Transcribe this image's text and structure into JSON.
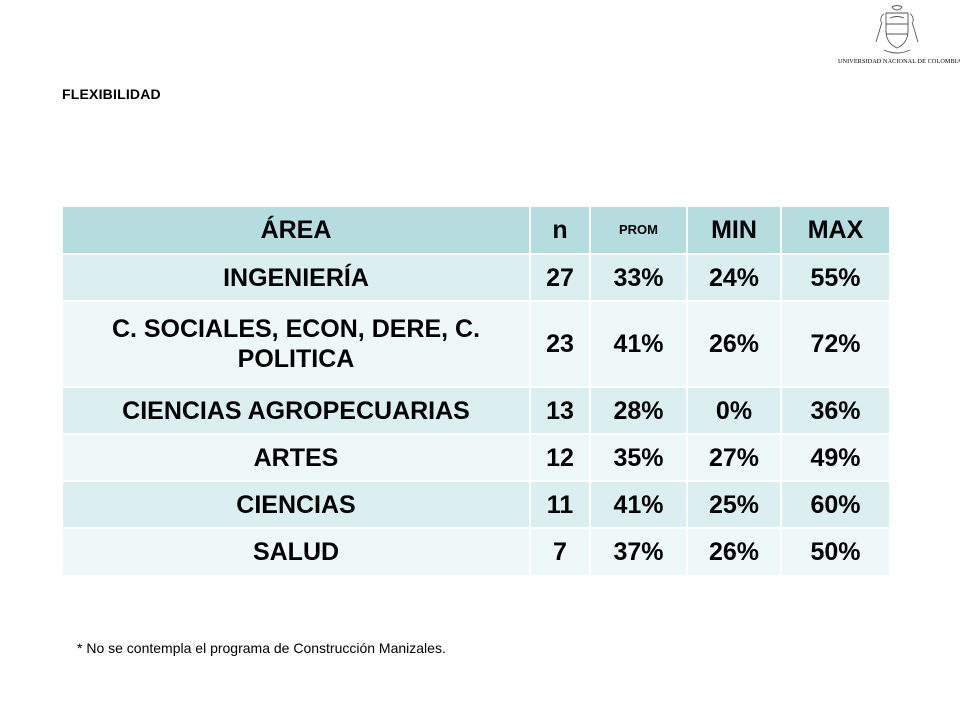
{
  "page": {
    "title": "FLEXIBILIDAD",
    "logo_text": "UNIVERSIDAD NACIONAL DE COLOMBIA",
    "footnote": "* No se contempla el programa de Construcción Manizales."
  },
  "table": {
    "headers": [
      "ÁREA",
      "n",
      "PROM",
      "MIN",
      "MAX"
    ],
    "rows": [
      {
        "area": "INGENIERÍA",
        "n": "27",
        "prom": "33%",
        "min": "24%",
        "max": "55%"
      },
      {
        "area": "C. SOCIALES, ECON, DERE, C. POLITICA",
        "n": "23",
        "prom": "41%",
        "min": "26%",
        "max": "72%"
      },
      {
        "area": "CIENCIAS AGROPECUARIAS",
        "n": "13",
        "prom": "28%",
        "min": "0%",
        "max": "36%"
      },
      {
        "area": "ARTES",
        "n": "12",
        "prom": "35%",
        "min": "27%",
        "max": "49%"
      },
      {
        "area": "CIENCIAS",
        "n": "11",
        "prom": "41%",
        "min": "25%",
        "max": "60%"
      },
      {
        "area": "SALUD",
        "n": "7",
        "prom": "37%",
        "min": "26%",
        "max": "50%"
      }
    ]
  },
  "colors": {
    "header_bg": "#b5dde0",
    "row_odd_bg": "#dceff0",
    "row_even_bg": "#eff8f8"
  }
}
